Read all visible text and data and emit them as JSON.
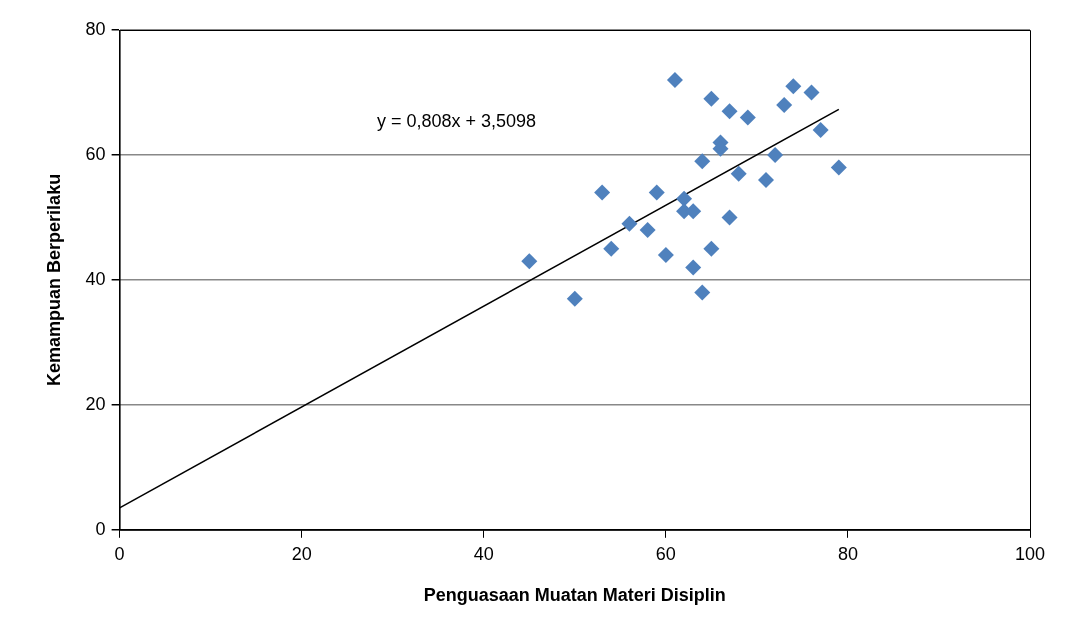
{
  "chart_data": {
    "type": "scatter",
    "xlabel": "Penguasaan Muatan Materi Disiplin",
    "ylabel": "Kemampuan Berperilaku",
    "xlim": [
      0,
      100
    ],
    "xticks": [
      0,
      20,
      40,
      60,
      80,
      100
    ],
    "ylim": [
      0,
      80
    ],
    "yticks": [
      0,
      20,
      40,
      60,
      80
    ],
    "grid": "y",
    "legend": false,
    "marker": "diamond",
    "series": [
      {
        "color": "#4f81bd",
        "x": [
          45,
          50,
          53,
          54,
          56,
          58,
          59,
          60,
          61,
          62,
          62,
          63,
          63,
          64,
          64,
          65,
          65,
          66,
          66,
          67,
          67,
          68,
          69,
          71,
          72,
          73,
          74,
          76,
          77,
          79
        ],
        "values": [
          43,
          37,
          54,
          45,
          49,
          48,
          54,
          44,
          72,
          53,
          51,
          51,
          42,
          59,
          38,
          69,
          45,
          62,
          61,
          67,
          50,
          57,
          66,
          56,
          60,
          68,
          71,
          70,
          64,
          58
        ]
      },
      {
        "type": "line",
        "color": "#000000",
        "marker": "none",
        "x": [
          0,
          79
        ],
        "values": [
          3.5,
          67.3
        ]
      }
    ],
    "annotations": [
      "y = 0,808x + 3,5098"
    ]
  }
}
